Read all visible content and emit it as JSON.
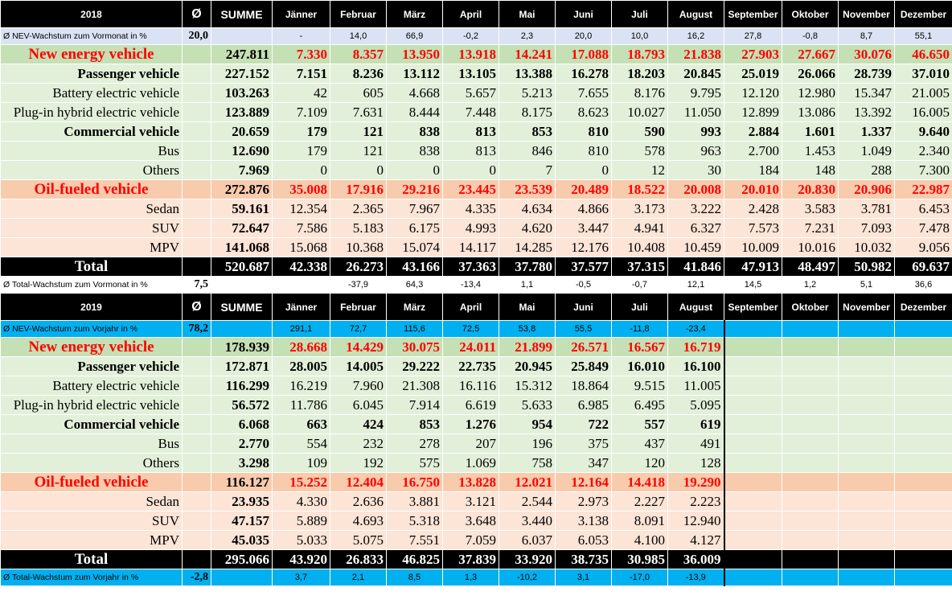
{
  "months": [
    "Jänner",
    "Februar",
    "März",
    "April",
    "Mai",
    "Juni",
    "Juli",
    "August",
    "September",
    "Oktober",
    "November",
    "Dezember"
  ],
  "summe_label": "SUMME",
  "avg_symbol": "Ø",
  "y2018": {
    "year": "2018",
    "growth_label": "Ø NEV-Wachstum zum Vormonat in %",
    "growth_avg": "20,0",
    "growth": [
      "-",
      "14,0",
      "66,9",
      "-0,2",
      "2,3",
      "20,0",
      "10,0",
      "16,2",
      "27,8",
      "-0,8",
      "8,7",
      "55,1"
    ],
    "rows": [
      {
        "label": "New energy vehicle",
        "sum": "247.811",
        "vals": [
          "7.330",
          "8.357",
          "13.950",
          "13.918",
          "14.241",
          "17.088",
          "18.793",
          "21.838",
          "27.903",
          "27.667",
          "30.076",
          "46.650"
        ]
      },
      {
        "label": "Passenger vehicle",
        "sum": "227.152",
        "vals": [
          "7.151",
          "8.236",
          "13.112",
          "13.105",
          "13.388",
          "16.278",
          "18.203",
          "20.845",
          "25.019",
          "26.066",
          "28.739",
          "37.010"
        ]
      },
      {
        "label": "Battery electric vehicle",
        "sum": "103.263",
        "vals": [
          "42",
          "605",
          "4.668",
          "5.657",
          "5.213",
          "7.655",
          "8.176",
          "9.795",
          "12.120",
          "12.980",
          "15.347",
          "21.005"
        ]
      },
      {
        "label": "Plug-in hybrid electric vehicle",
        "sum": "123.889",
        "vals": [
          "7.109",
          "7.631",
          "8.444",
          "7.448",
          "8.175",
          "8.623",
          "10.027",
          "11.050",
          "12.899",
          "13.086",
          "13.392",
          "16.005"
        ]
      },
      {
        "label": "Commercial vehicle",
        "sum": "20.659",
        "vals": [
          "179",
          "121",
          "838",
          "813",
          "853",
          "810",
          "590",
          "993",
          "2.884",
          "1.601",
          "1.337",
          "9.640"
        ]
      },
      {
        "label": "Bus",
        "sum": "12.690",
        "vals": [
          "179",
          "121",
          "838",
          "813",
          "846",
          "810",
          "578",
          "963",
          "2.700",
          "1.453",
          "1.049",
          "2.340"
        ]
      },
      {
        "label": "Others",
        "sum": "7.969",
        "vals": [
          "0",
          "0",
          "0",
          "0",
          "7",
          "0",
          "12",
          "30",
          "184",
          "148",
          "288",
          "7.300"
        ]
      },
      {
        "label": "Oil-fueled vehicle",
        "sum": "272.876",
        "vals": [
          "35.008",
          "17.916",
          "29.216",
          "23.445",
          "23.539",
          "20.489",
          "18.522",
          "20.008",
          "20.010",
          "20.830",
          "20.906",
          "22.987"
        ]
      },
      {
        "label": "Sedan",
        "sum": "59.161",
        "vals": [
          "12.354",
          "2.365",
          "7.967",
          "4.335",
          "4.634",
          "4.866",
          "3.173",
          "3.222",
          "2.428",
          "3.583",
          "3.781",
          "6.453"
        ]
      },
      {
        "label": "SUV",
        "sum": "72.647",
        "vals": [
          "7.586",
          "5.183",
          "6.175",
          "4.993",
          "4.620",
          "3.447",
          "4.941",
          "6.327",
          "7.573",
          "7.231",
          "7.093",
          "7.478"
        ]
      },
      {
        "label": "MPV",
        "sum": "141.068",
        "vals": [
          "15.068",
          "10.368",
          "15.074",
          "14.117",
          "14.285",
          "12.176",
          "10.408",
          "10.459",
          "10.009",
          "10.016",
          "10.032",
          "9.056"
        ]
      },
      {
        "label": "Total",
        "sum": "520.687",
        "vals": [
          "42.338",
          "26.273",
          "43.166",
          "37.363",
          "37.780",
          "37.577",
          "37.315",
          "41.846",
          "47.913",
          "48.497",
          "50.982",
          "69.637"
        ]
      }
    ],
    "total_growth_label": "Ø Total-Wachstum zum Vormonat in %",
    "total_growth_avg": "7,5",
    "total_growth": [
      "",
      "-37,9",
      "64,3",
      "-13,4",
      "1,1",
      "-0,5",
      "-0,7",
      "12,1",
      "14,5",
      "1,2",
      "5,1",
      "36,6"
    ]
  },
  "y2019": {
    "year": "2019",
    "growth_label": "Ø NEV-Wachstum zum Vorjahr in %",
    "growth_avg": "78,2",
    "growth": [
      "291,1",
      "72,7",
      "115,6",
      "72,5",
      "53,8",
      "55,5",
      "-11,8",
      "-23,4"
    ],
    "rows": [
      {
        "label": "New energy vehicle",
        "sum": "178.939",
        "vals": [
          "28.668",
          "14.429",
          "30.075",
          "24.011",
          "21.899",
          "26.571",
          "16.567",
          "16.719"
        ]
      },
      {
        "label": "Passenger vehicle",
        "sum": "172.871",
        "vals": [
          "28.005",
          "14.005",
          "29.222",
          "22.735",
          "20.945",
          "25.849",
          "16.010",
          "16.100"
        ]
      },
      {
        "label": "Battery electric vehicle",
        "sum": "116.299",
        "vals": [
          "16.219",
          "7.960",
          "21.308",
          "16.116",
          "15.312",
          "18.864",
          "9.515",
          "11.005"
        ]
      },
      {
        "label": "Plug-in hybrid electric vehicle",
        "sum": "56.572",
        "vals": [
          "11.786",
          "6.045",
          "7.914",
          "6.619",
          "5.633",
          "6.985",
          "6.495",
          "5.095"
        ]
      },
      {
        "label": "Commercial vehicle",
        "sum": "6.068",
        "vals": [
          "663",
          "424",
          "853",
          "1.276",
          "954",
          "722",
          "557",
          "619"
        ]
      },
      {
        "label": "Bus",
        "sum": "2.770",
        "vals": [
          "554",
          "232",
          "278",
          "207",
          "196",
          "375",
          "437",
          "491"
        ]
      },
      {
        "label": "Others",
        "sum": "3.298",
        "vals": [
          "109",
          "192",
          "575",
          "1.069",
          "758",
          "347",
          "120",
          "128"
        ]
      },
      {
        "label": "Oil-fueled vehicle",
        "sum": "116.127",
        "vals": [
          "15.252",
          "12.404",
          "16.750",
          "13.828",
          "12.021",
          "12.164",
          "14.418",
          "19.290"
        ]
      },
      {
        "label": "Sedan",
        "sum": "23.935",
        "vals": [
          "4.330",
          "2.636",
          "3.881",
          "3.121",
          "2.544",
          "2.973",
          "2.227",
          "2.223"
        ]
      },
      {
        "label": "SUV",
        "sum": "47.157",
        "vals": [
          "5.889",
          "4.693",
          "5.318",
          "3.648",
          "3.440",
          "3.138",
          "8.091",
          "12.940"
        ]
      },
      {
        "label": "MPV",
        "sum": "45.035",
        "vals": [
          "5.033",
          "5.075",
          "7.551",
          "7.059",
          "6.037",
          "6.053",
          "4.100",
          "4.127"
        ]
      },
      {
        "label": "Total",
        "sum": "295.066",
        "vals": [
          "43.920",
          "26.833",
          "46.825",
          "37.839",
          "33.920",
          "38.735",
          "30.985",
          "36.009"
        ]
      }
    ],
    "total_growth_label": "Ø Total-Wachstum zum Vorjahr in %",
    "total_growth_avg": "-2,8",
    "total_growth": [
      "3,7",
      "2,1",
      "8,5",
      "1,3",
      "-10,2",
      "3,1",
      "-17,0",
      "-13,9"
    ]
  },
  "colors": {
    "header": "#000000",
    "nev_main": "#c5e0b4",
    "nev_sub": "#e2f0d9",
    "oil_main": "#f8cbad",
    "oil_sub": "#fce4d6",
    "growth_2018": "#dae3f3",
    "growth_2019": "#00b0f0",
    "highlight_text": "#ff0000"
  }
}
